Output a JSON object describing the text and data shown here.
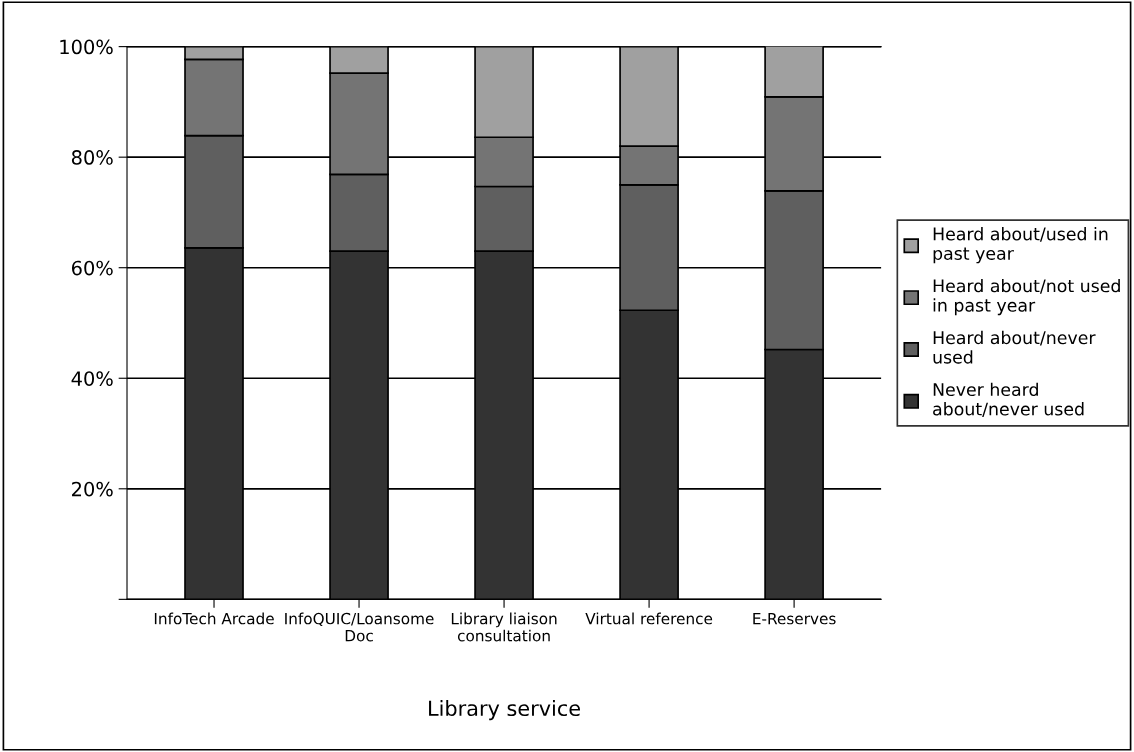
{
  "chart_data": {
    "type": "bar",
    "stacked": true,
    "xlabel": "Library service",
    "categories": [
      "InfoTech Arcade",
      "InfoQUIC/Loansome\nDoc",
      "Library liaison\nconsultation",
      "Virtual reference",
      "E-Reserves"
    ],
    "series": [
      {
        "name": "Never heard\nabout/never used",
        "color": "#333333",
        "values": [
          63.6,
          63.0,
          63.0,
          52.3,
          45.2
        ]
      },
      {
        "name": "Heard about/never\nused",
        "color": "#5f5f5f",
        "values": [
          20.3,
          13.9,
          11.7,
          22.7,
          28.7
        ]
      },
      {
        "name": "Heard about/not used\nin past year",
        "color": "#747474",
        "values": [
          13.8,
          18.3,
          8.9,
          7.0,
          17.0
        ]
      },
      {
        "name": "Heard about/used in\npast year",
        "color": "#a0a0a0",
        "values": [
          2.3,
          4.8,
          16.4,
          18.0,
          9.3
        ]
      }
    ],
    "ylim": [
      0,
      100
    ],
    "yticks": [
      {
        "value": 0,
        "label": null
      },
      {
        "value": 20,
        "label": "20%"
      },
      {
        "value": 40,
        "label": "40%"
      },
      {
        "value": 60,
        "label": "60%"
      },
      {
        "value": 80,
        "label": "80%"
      },
      {
        "value": 100,
        "label": "100%"
      }
    ],
    "grid": "y",
    "legend": "right"
  }
}
